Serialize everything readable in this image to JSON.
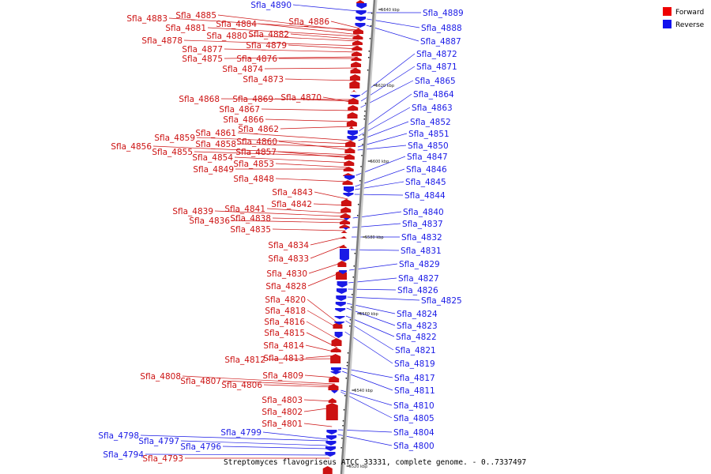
{
  "caption": "Streptomyces flavogriseus ATCC 33331, complete genome. - 0..7337497",
  "legend": [
    {
      "label": "Forward",
      "color": "#ee0000"
    },
    {
      "label": "Reverse",
      "color": "#1111ee"
    }
  ],
  "colors": {
    "forward": "#cc1111",
    "reverse": "#1a1ae6",
    "axis": "#808080"
  },
  "scale_ticks": [
    "5640 kbp",
    "5620 kbp",
    "5600 kbp",
    "5580 kbp",
    "5560 kbp",
    "5540 kbp",
    "5520 kbp"
  ],
  "genes_forward": [
    "Sfla_4883",
    "Sfla_4885",
    "Sfla_4884",
    "Sfla_4886",
    "Sfla_4881",
    "Sfla_4880",
    "Sfla_4882",
    "Sfla_4878",
    "Sfla_4879",
    "Sfla_4877",
    "Sfla_4875",
    "Sfla_4876",
    "Sfla_4874",
    "Sfla_4873",
    "Sfla_4868",
    "Sfla_4869",
    "Sfla_4870",
    "Sfla_4867",
    "Sfla_4866",
    "Sfla_4862",
    "Sfla_4861",
    "Sfla_4859",
    "Sfla_4858",
    "Sfla_4860",
    "Sfla_4856",
    "Sfla_4855",
    "Sfla_4857",
    "Sfla_4854",
    "Sfla_4853",
    "Sfla_4849",
    "Sfla_4848",
    "Sfla_4843",
    "Sfla_4842",
    "Sfla_4841",
    "Sfla_4839",
    "Sfla_4838",
    "Sfla_4836",
    "Sfla_4835",
    "Sfla_4834",
    "Sfla_4833",
    "Sfla_4830",
    "Sfla_4828",
    "Sfla_4820",
    "Sfla_4818",
    "Sfla_4816",
    "Sfla_4815",
    "Sfla_4814",
    "Sfla_4813",
    "Sfla_4812",
    "Sfla_4809",
    "Sfla_4808",
    "Sfla_4807",
    "Sfla_4806",
    "Sfla_4803",
    "Sfla_4802",
    "Sfla_4801",
    "Sfla_4793"
  ],
  "genes_reverse": [
    "Sfla_4890",
    "Sfla_4889",
    "Sfla_4888",
    "Sfla_4887",
    "Sfla_4872",
    "Sfla_4871",
    "Sfla_4865",
    "Sfla_4864",
    "Sfla_4863",
    "Sfla_4852",
    "Sfla_4851",
    "Sfla_4850",
    "Sfla_4847",
    "Sfla_4846",
    "Sfla_4845",
    "Sfla_4844",
    "Sfla_4840",
    "Sfla_4837",
    "Sfla_4832",
    "Sfla_4831",
    "Sfla_4829",
    "Sfla_4827",
    "Sfla_4826",
    "Sfla_4825",
    "Sfla_4824",
    "Sfla_4823",
    "Sfla_4822",
    "Sfla_4821",
    "Sfla_4819",
    "Sfla_4817",
    "Sfla_4811",
    "Sfla_4810",
    "Sfla_4805",
    "Sfla_4804",
    "Sfla_4800",
    "Sfla_4799",
    "Sfla_4798",
    "Sfla_4797",
    "Sfla_4796",
    "Sfla_4794"
  ]
}
